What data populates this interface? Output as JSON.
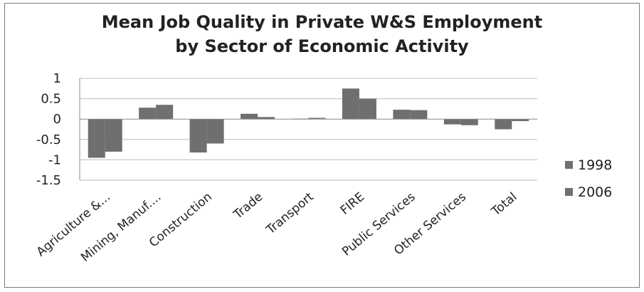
{
  "chart_data": {
    "type": "bar",
    "title_line1": "Mean Job Quality in Private W&S Employment",
    "title_line2": "by Sector of Economic Activity",
    "categories": [
      "Agriculture &...",
      "Mining, Manuf....",
      "Construction",
      "Trade",
      "Transport",
      "FIRE",
      "Public Services",
      "Other Services",
      "Total"
    ],
    "series": [
      {
        "name": "1998",
        "values": [
          -0.95,
          0.28,
          -0.82,
          0.13,
          0.01,
          0.75,
          0.23,
          -0.13,
          -0.25
        ]
      },
      {
        "name": "2006",
        "values": [
          -0.8,
          0.35,
          -0.6,
          0.05,
          0.03,
          0.5,
          0.22,
          -0.15,
          -0.05
        ]
      }
    ],
    "ylim": [
      -1.5,
      1
    ],
    "yticks": [
      "1",
      "0.5",
      "0",
      "-0.5",
      "-1",
      "-1.5"
    ],
    "xlabel": "",
    "ylabel": "",
    "grid": true,
    "legend_position": "right",
    "colors": {
      "bar": "#6f6f6f",
      "grid": "#bdbdbd",
      "axis": "#8a8a8a"
    }
  }
}
